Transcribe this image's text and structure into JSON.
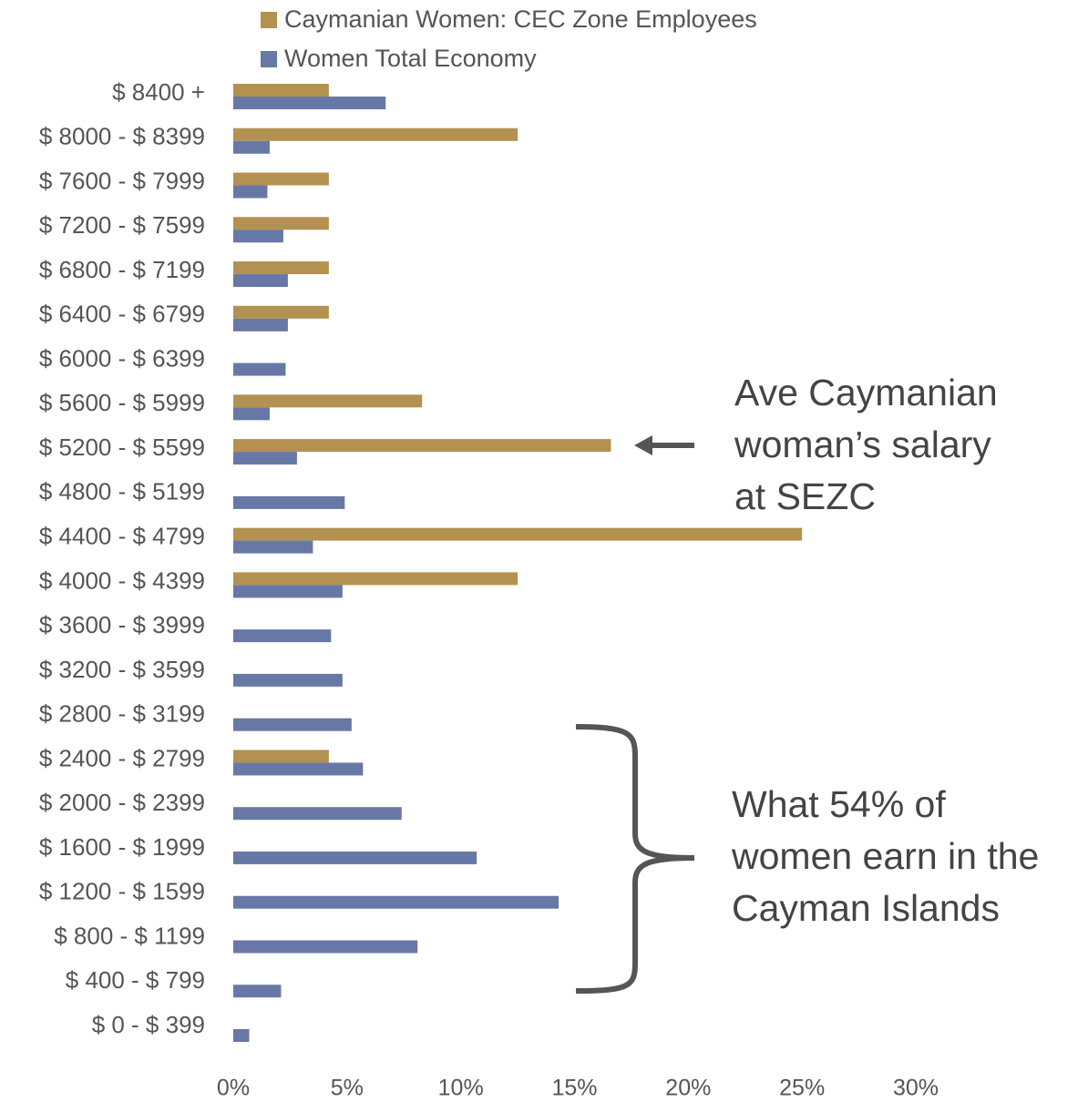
{
  "chart_data": {
    "type": "hbar",
    "categories": [
      "$ 8400 +",
      "$ 8000 - $ 8399",
      "$ 7600 - $ 7999",
      "$ 7200 - $ 7599",
      "$ 6800 - $ 7199",
      "$ 6400 - $ 6799",
      "$ 6000 - $ 6399",
      "$ 5600 - $ 5999",
      "$ 5200 - $ 5599",
      "$ 4800 - $ 5199",
      "$ 4400 - $ 4799",
      "$ 4000 - $ 4399",
      "$ 3600 - $ 3999",
      "$ 3200 - $ 3599",
      "$ 2800 - $ 3199",
      "$ 2400 - $ 2799",
      "$ 2000 - $ 2399",
      "$ 1600 - $ 1999",
      "$ 1200 - $ 1599",
      "$ 800 - $ 1199",
      "$ 400 - $ 799",
      "$ 0 - $ 399"
    ],
    "series": [
      {
        "name": "Caymanian Women: CEC Zone Employees",
        "color": "#b39150",
        "values": [
          4.2,
          12.5,
          4.2,
          4.2,
          4.2,
          4.2,
          0,
          8.3,
          16.6,
          0,
          25.0,
          12.5,
          0,
          0,
          0,
          4.2,
          0,
          0,
          0,
          0,
          0,
          0
        ]
      },
      {
        "name": "Women Total Economy",
        "color": "#6878a6",
        "values": [
          6.7,
          1.6,
          1.5,
          2.2,
          2.4,
          2.4,
          2.3,
          1.6,
          2.8,
          4.9,
          3.5,
          4.8,
          4.3,
          4.8,
          5.2,
          5.7,
          7.4,
          10.7,
          14.3,
          8.1,
          2.1,
          0.7
        ]
      }
    ],
    "xlim": [
      0,
      30
    ],
    "xticks": [
      {
        "value": 0,
        "label": "0%"
      },
      {
        "value": 5,
        "label": "5%"
      },
      {
        "value": 10,
        "label": "10%"
      },
      {
        "value": 15,
        "label": "15%"
      },
      {
        "value": 20,
        "label": "20%"
      },
      {
        "value": 25,
        "label": "25%"
      },
      {
        "value": 30,
        "label": "30%"
      }
    ],
    "grid": false,
    "annotations": [
      {
        "lines": [
          "Ave Caymanian",
          "woman’s salary",
          "at SEZC"
        ]
      },
      {
        "lines": [
          "What 54% of",
          "women earn in the",
          "Cayman Islands"
        ]
      }
    ]
  }
}
